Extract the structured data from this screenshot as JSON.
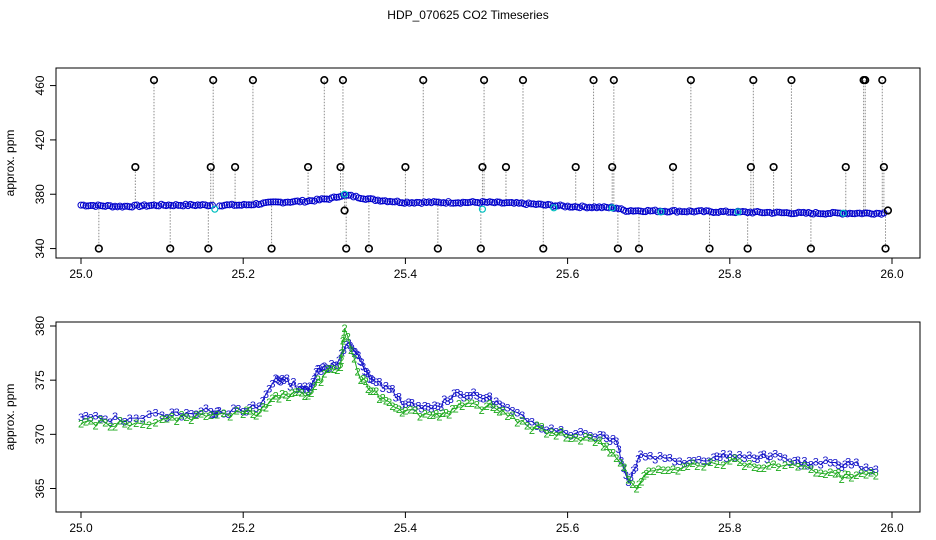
{
  "figure": {
    "title": "HDP_070625  CO2 Timeseries"
  },
  "colors": {
    "outlier": "#000000",
    "normal": "#0000cc",
    "flag": "#00bfbf",
    "spike_line": "#8c8c8c",
    "series_3": "#1414c8",
    "series_2": "#1faa1f"
  },
  "chart_data": [
    {
      "type": "scatter",
      "title": "",
      "xlabel": "",
      "ylabel": "approx. ppm",
      "xlim": [
        25.0,
        26.0
      ],
      "ylim": [
        340,
        470
      ],
      "xticks": [
        25.0,
        25.2,
        25.4,
        25.6,
        25.8,
        26.0
      ],
      "xtick_labels": [
        "25.0",
        "25.2",
        "25.4",
        "25.6",
        "25.8",
        "26.0"
      ],
      "yticks": [
        340,
        380,
        420,
        460
      ],
      "ytick_labels": [
        "340",
        "380",
        "420",
        "460"
      ],
      "grid": false,
      "baseline": [
        [
          25.0,
          372
        ],
        [
          25.05,
          371
        ],
        [
          25.1,
          372
        ],
        [
          25.16,
          372
        ],
        [
          25.2,
          372
        ],
        [
          25.24,
          374
        ],
        [
          25.28,
          375
        ],
        [
          25.31,
          377
        ],
        [
          25.32,
          379
        ],
        [
          25.33,
          379
        ],
        [
          25.36,
          376
        ],
        [
          25.4,
          374
        ],
        [
          25.45,
          374
        ],
        [
          25.5,
          374
        ],
        [
          25.55,
          373
        ],
        [
          25.6,
          371
        ],
        [
          25.66,
          370
        ],
        [
          25.67,
          368
        ],
        [
          25.8,
          367
        ],
        [
          25.9,
          366
        ],
        [
          25.99,
          366
        ]
      ],
      "outliers": [
        {
          "x": 25.022,
          "y": 340
        },
        {
          "x": 25.067,
          "y": 400
        },
        {
          "x": 25.09,
          "y": 464
        },
        {
          "x": 25.11,
          "y": 340
        },
        {
          "x": 25.157,
          "y": 340
        },
        {
          "x": 25.16,
          "y": 400
        },
        {
          "x": 25.163,
          "y": 464
        },
        {
          "x": 25.19,
          "y": 400
        },
        {
          "x": 25.212,
          "y": 464
        },
        {
          "x": 25.235,
          "y": 340
        },
        {
          "x": 25.28,
          "y": 400
        },
        {
          "x": 25.3,
          "y": 464
        },
        {
          "x": 25.32,
          "y": 400
        },
        {
          "x": 25.323,
          "y": 464
        },
        {
          "x": 25.325,
          "y": 368
        },
        {
          "x": 25.327,
          "y": 340
        },
        {
          "x": 25.355,
          "y": 340
        },
        {
          "x": 25.4,
          "y": 400
        },
        {
          "x": 25.422,
          "y": 464
        },
        {
          "x": 25.44,
          "y": 340
        },
        {
          "x": 25.493,
          "y": 340
        },
        {
          "x": 25.495,
          "y": 400
        },
        {
          "x": 25.497,
          "y": 464
        },
        {
          "x": 25.524,
          "y": 400
        },
        {
          "x": 25.545,
          "y": 464
        },
        {
          "x": 25.57,
          "y": 340
        },
        {
          "x": 25.61,
          "y": 400
        },
        {
          "x": 25.632,
          "y": 464
        },
        {
          "x": 25.655,
          "y": 400
        },
        {
          "x": 25.657,
          "y": 464
        },
        {
          "x": 25.662,
          "y": 340
        },
        {
          "x": 25.688,
          "y": 340
        },
        {
          "x": 25.73,
          "y": 400
        },
        {
          "x": 25.752,
          "y": 464
        },
        {
          "x": 25.775,
          "y": 340
        },
        {
          "x": 25.822,
          "y": 340
        },
        {
          "x": 25.826,
          "y": 400
        },
        {
          "x": 25.829,
          "y": 464
        },
        {
          "x": 25.854,
          "y": 400
        },
        {
          "x": 25.876,
          "y": 464
        },
        {
          "x": 25.9,
          "y": 340
        },
        {
          "x": 25.943,
          "y": 400
        },
        {
          "x": 25.965,
          "y": 464
        },
        {
          "x": 25.967,
          "y": 464
        },
        {
          "x": 25.988,
          "y": 464
        },
        {
          "x": 25.99,
          "y": 400
        },
        {
          "x": 25.992,
          "y": 340
        },
        {
          "x": 25.995,
          "y": 368
        }
      ]
    },
    {
      "type": "scatter",
      "title": "",
      "xlabel": "",
      "ylabel": "approx. ppm",
      "xlim": [
        25.0,
        26.0
      ],
      "ylim": [
        363,
        380
      ],
      "xticks": [
        25.0,
        25.2,
        25.4,
        25.6,
        25.8,
        26.0
      ],
      "xtick_labels": [
        "25.0",
        "25.2",
        "25.4",
        "25.6",
        "25.8",
        "26.0"
      ],
      "yticks": [
        365,
        370,
        375,
        380
      ],
      "ytick_labels": [
        "365",
        "370",
        "375",
        "380"
      ],
      "grid": false,
      "series": [
        {
          "marker": "3",
          "color": "#1414c8",
          "points": [
            [
              25.0,
              371.6
            ],
            [
              25.03,
              371.4
            ],
            [
              25.06,
              371.5
            ],
            [
              25.1,
              371.8
            ],
            [
              25.13,
              372.0
            ],
            [
              25.16,
              372.1
            ],
            [
              25.17,
              372.2
            ],
            [
              25.2,
              372.1
            ],
            [
              25.22,
              372.6
            ],
            [
              25.24,
              375.2
            ],
            [
              25.25,
              375.0
            ],
            [
              25.27,
              374.4
            ],
            [
              25.28,
              374.0
            ],
            [
              25.29,
              375.8
            ],
            [
              25.3,
              376.3
            ],
            [
              25.315,
              376.4
            ],
            [
              25.33,
              378.5
            ],
            [
              25.34,
              377.4
            ],
            [
              25.35,
              375.8
            ],
            [
              25.36,
              375.0
            ],
            [
              25.38,
              374.2
            ],
            [
              25.4,
              372.8
            ],
            [
              25.42,
              372.4
            ],
            [
              25.44,
              372.6
            ],
            [
              25.46,
              373.8
            ],
            [
              25.48,
              373.6
            ],
            [
              25.5,
              373.4
            ],
            [
              25.52,
              372.6
            ],
            [
              25.55,
              371.2
            ],
            [
              25.58,
              370.6
            ],
            [
              25.61,
              370.1
            ],
            [
              25.64,
              370.0
            ],
            [
              25.66,
              369.4
            ],
            [
              25.675,
              365.6
            ],
            [
              25.69,
              368.2
            ],
            [
              25.72,
              367.8
            ],
            [
              25.75,
              367.6
            ],
            [
              25.78,
              367.9
            ],
            [
              25.8,
              368.2
            ],
            [
              25.83,
              367.8
            ],
            [
              25.85,
              368.0
            ],
            [
              25.88,
              367.6
            ],
            [
              25.9,
              367.2
            ],
            [
              25.93,
              367.4
            ],
            [
              25.95,
              367.2
            ],
            [
              25.98,
              366.8
            ]
          ]
        },
        {
          "marker": "2",
          "color": "#1faa1f",
          "points": [
            [
              25.0,
              371.0
            ],
            [
              25.03,
              371.1
            ],
            [
              25.06,
              370.8
            ],
            [
              25.1,
              371.4
            ],
            [
              25.13,
              371.6
            ],
            [
              25.16,
              371.8
            ],
            [
              25.2,
              371.9
            ],
            [
              25.22,
              372.0
            ],
            [
              25.24,
              373.6
            ],
            [
              25.26,
              373.8
            ],
            [
              25.28,
              373.6
            ],
            [
              25.3,
              375.6
            ],
            [
              25.32,
              376.2
            ],
            [
              25.325,
              379.8
            ],
            [
              25.345,
              375.0
            ],
            [
              25.36,
              374.0
            ],
            [
              25.38,
              373.0
            ],
            [
              25.4,
              372.2
            ],
            [
              25.43,
              371.8
            ],
            [
              25.45,
              372.0
            ],
            [
              25.47,
              372.6
            ],
            [
              25.5,
              372.6
            ],
            [
              25.52,
              372.2
            ],
            [
              25.55,
              370.8
            ],
            [
              25.58,
              370.2
            ],
            [
              25.61,
              369.7
            ],
            [
              25.64,
              369.5
            ],
            [
              25.66,
              367.8
            ],
            [
              25.685,
              365.0
            ],
            [
              25.7,
              366.6
            ],
            [
              25.73,
              366.8
            ],
            [
              25.76,
              367.1
            ],
            [
              25.8,
              367.6
            ],
            [
              25.83,
              367.0
            ],
            [
              25.86,
              367.0
            ],
            [
              25.9,
              366.8
            ],
            [
              25.93,
              366.4
            ],
            [
              25.95,
              366.0
            ],
            [
              25.98,
              366.2
            ]
          ]
        }
      ]
    }
  ]
}
